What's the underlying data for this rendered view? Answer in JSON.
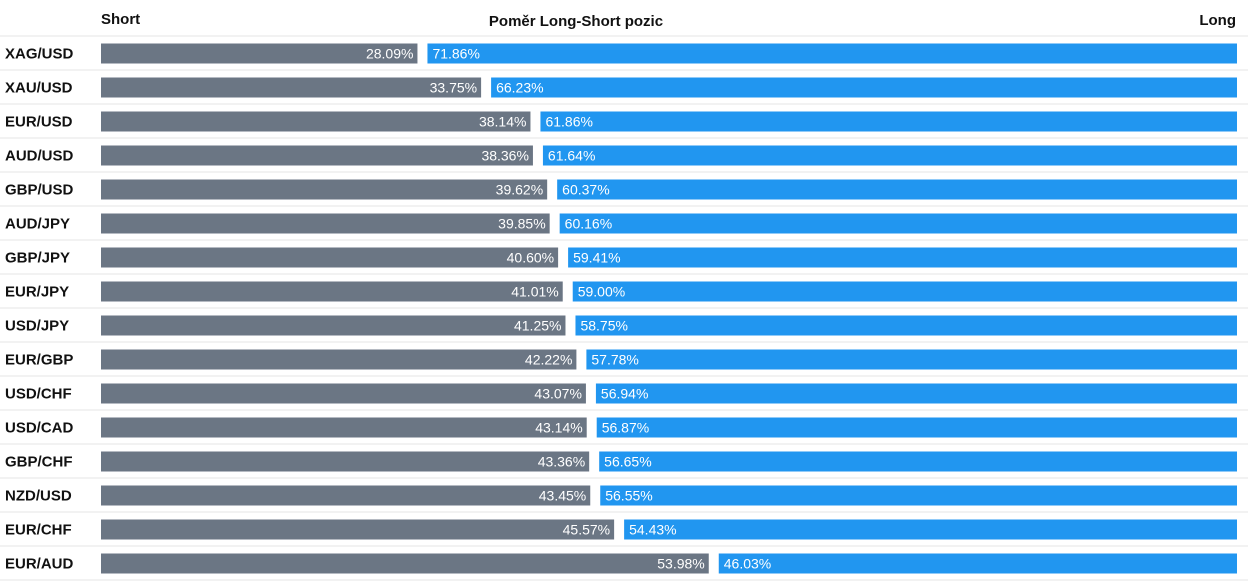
{
  "chart_data": {
    "type": "bar",
    "title": "Poměr Long-Short pozic",
    "short_label": "Short",
    "long_label": "Long",
    "unit": "%",
    "categories": [
      "XAG/USD",
      "XAU/USD",
      "EUR/USD",
      "AUD/USD",
      "GBP/USD",
      "AUD/JPY",
      "GBP/JPY",
      "EUR/JPY",
      "USD/JPY",
      "EUR/GBP",
      "USD/CHF",
      "USD/CAD",
      "GBP/CHF",
      "NZD/USD",
      "EUR/CHF",
      "EUR/AUD"
    ],
    "series": [
      {
        "name": "Short",
        "color": "#6b7684",
        "values": [
          28.09,
          33.75,
          38.14,
          38.36,
          39.62,
          39.85,
          40.6,
          41.01,
          41.25,
          42.22,
          43.07,
          43.14,
          43.36,
          43.45,
          45.57,
          53.98
        ],
        "labels": [
          "28.09%",
          "33.75%",
          "38.14%",
          "38.36%",
          "39.62%",
          "39.85%",
          "40.60%",
          "41.01%",
          "41.25%",
          "42.22%",
          "43.07%",
          "43.14%",
          "43.36%",
          "43.45%",
          "45.57%",
          "53.98%"
        ]
      },
      {
        "name": "Long",
        "color": "#2196f0",
        "values": [
          71.86,
          66.23,
          61.86,
          61.64,
          60.37,
          60.16,
          59.41,
          59.0,
          58.75,
          57.78,
          56.94,
          56.87,
          56.65,
          56.55,
          54.43,
          46.03
        ],
        "labels": [
          "71.86%",
          "66.23%",
          "61.86%",
          "61.64%",
          "60.37%",
          "60.16%",
          "59.41%",
          "59.00%",
          "58.75%",
          "57.78%",
          "56.94%",
          "56.87%",
          "56.65%",
          "56.55%",
          "54.43%",
          "46.03%"
        ]
      }
    ],
    "stacked": true,
    "orientation": "horizontal",
    "grid": true
  }
}
